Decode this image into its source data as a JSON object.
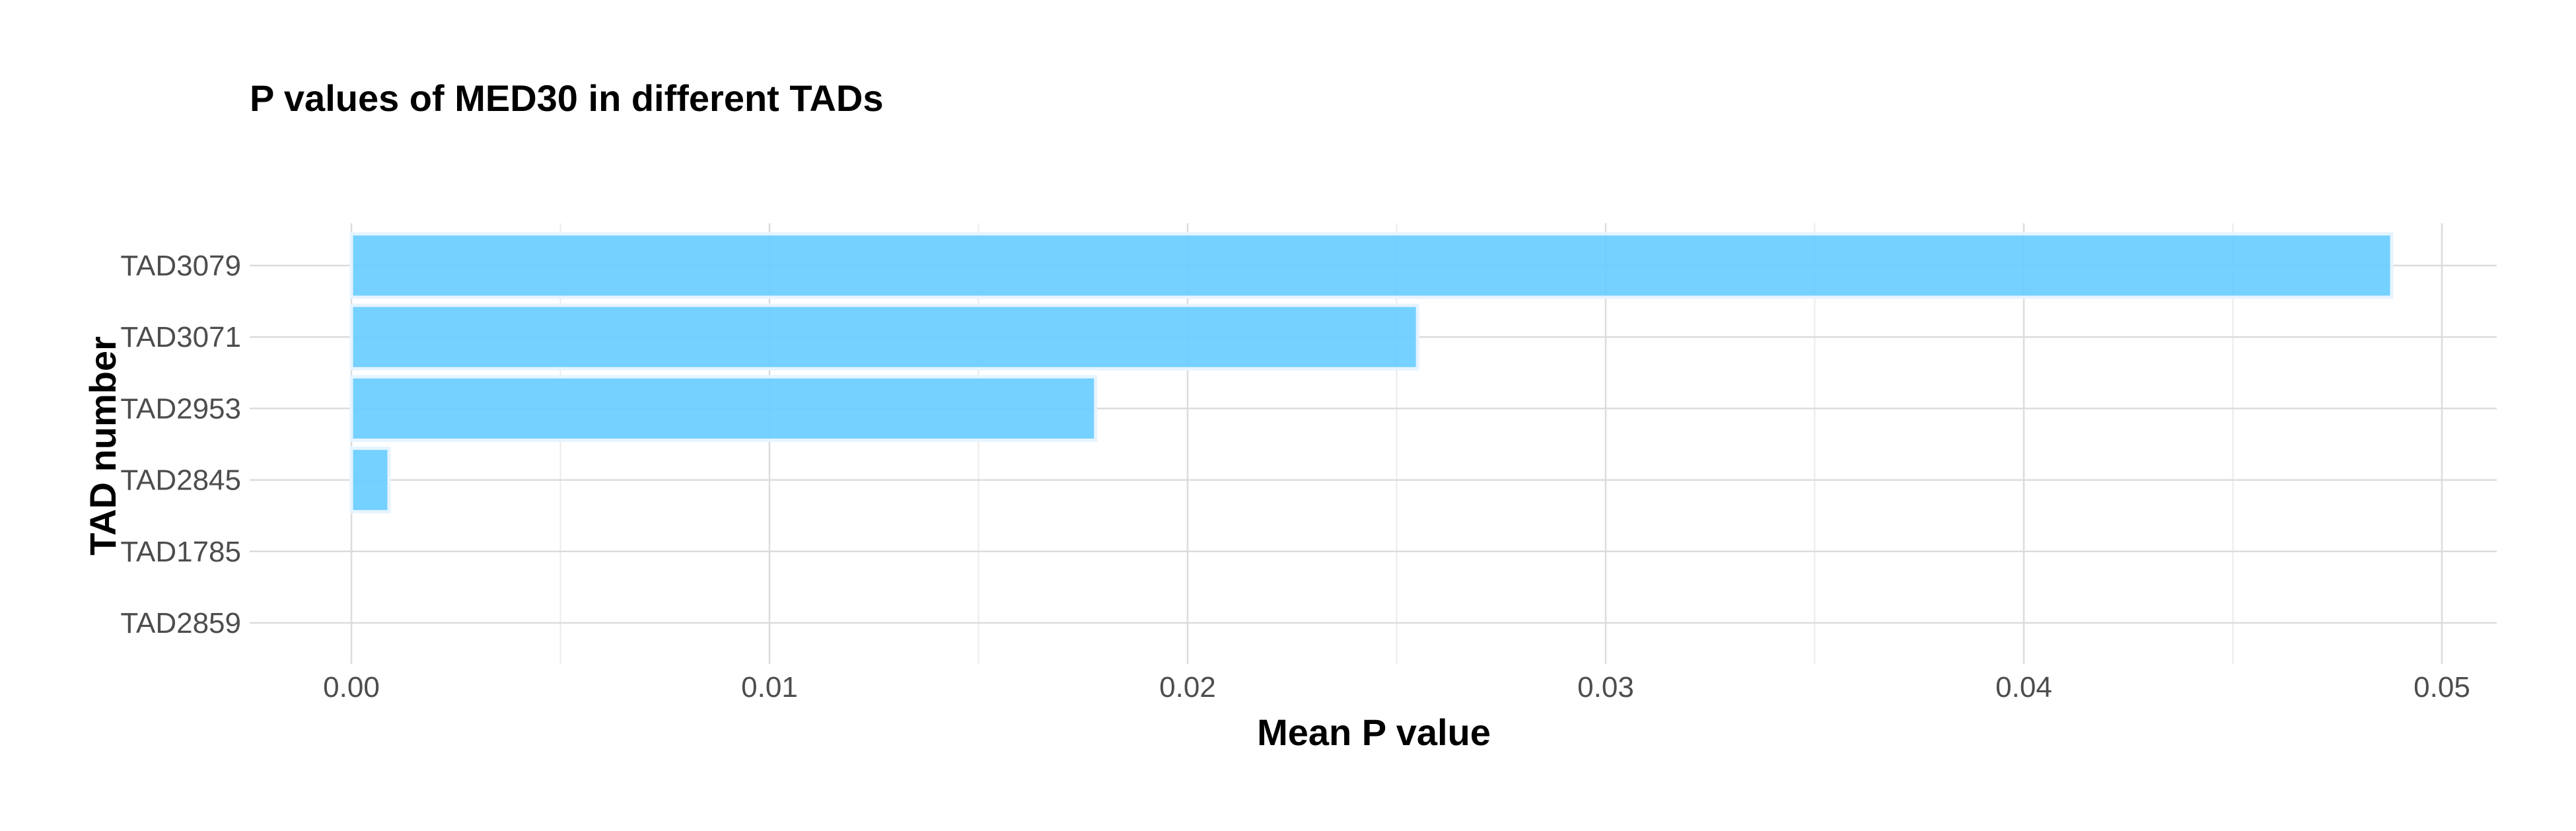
{
  "chart_data": {
    "type": "bar",
    "orientation": "horizontal",
    "title": "P values of MED30 in different TADs",
    "xlabel": "Mean P value",
    "ylabel": "TAD number",
    "categories": [
      "TAD3079",
      "TAD3071",
      "TAD2953",
      "TAD2845",
      "TAD1785",
      "TAD2859"
    ],
    "values": [
      0.0488,
      0.0255,
      0.0178,
      0.0009,
      0.0,
      0.0
    ],
    "xlim": [
      0,
      0.05
    ],
    "xticks": [
      "0.00",
      "0.01",
      "0.02",
      "0.03",
      "0.04",
      "0.05"
    ],
    "grid": true,
    "legend": "none",
    "bar_color": "#66ccff",
    "bar_edge_color": "#e6f4ff",
    "grid_color": "#dcdcdc"
  }
}
